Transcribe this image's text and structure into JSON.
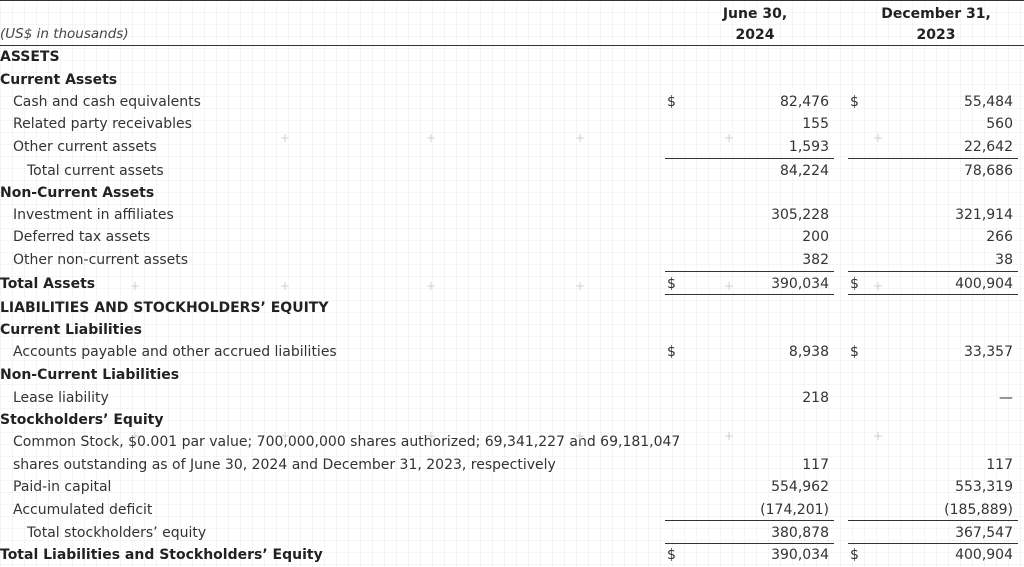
{
  "header": {
    "units": "(US$ in thousands)",
    "col1_line1": "June 30,",
    "col1_line2": "2024",
    "col2_line1": "December 31,",
    "col2_line2": "2023"
  },
  "rows": [
    {
      "label": "ASSETS"
    },
    {
      "label": "Current Assets"
    },
    {
      "label": "Cash and cash equivalents",
      "d1": "$",
      "v1": "82,476",
      "d2": "$",
      "v2": "55,484"
    },
    {
      "label": "Related party receivables",
      "v1": "155",
      "v2": "560"
    },
    {
      "label": "Other current assets",
      "v1": "1,593",
      "v2": "22,642"
    },
    {
      "label": "Total current assets",
      "v1": "84,224",
      "v2": "78,686"
    },
    {
      "label": "Non-Current Assets"
    },
    {
      "label": "Investment in affiliates",
      "v1": "305,228",
      "v2": "321,914"
    },
    {
      "label": "Deferred tax assets",
      "v1": "200",
      "v2": "266"
    },
    {
      "label": "Other non-current assets",
      "v1": "382",
      "v2": "38"
    },
    {
      "label": "Total Assets",
      "d1": "$",
      "v1": "390,034",
      "d2": "$",
      "v2": "400,904"
    },
    {
      "label": "LIABILITIES AND STOCKHOLDERS’ EQUITY"
    },
    {
      "label": "Current Liabilities"
    },
    {
      "label": "Accounts payable and other accrued liabilities",
      "d1": "$",
      "v1": "8,938",
      "d2": "$",
      "v2": "33,357"
    },
    {
      "label": "Non-Current Liabilities"
    },
    {
      "label": "Lease liability",
      "v1": "218",
      "v2": "—"
    },
    {
      "label": "Stockholders’ Equity"
    },
    {
      "label": "Common Stock, $0.001 par value; 700,000,000 shares authorized; 69,341,227 and 69,181,047"
    },
    {
      "label": "shares outstanding as of June 30, 2024 and December 31, 2023, respectively",
      "v1": "117",
      "v2": "117"
    },
    {
      "label": "Paid-in capital",
      "v1": "554,962",
      "v2": "553,319"
    },
    {
      "label": "Accumulated deficit",
      "v1": "(174,201)",
      "v2": "(185,889)"
    },
    {
      "label": "Total stockholders’ equity",
      "v1": "380,878",
      "v2": "367,547"
    },
    {
      "label": "Total Liabilities and Stockholders’ Equity",
      "d1": "$",
      "v1": "390,034",
      "d2": "$",
      "v2": "400,904"
    }
  ]
}
